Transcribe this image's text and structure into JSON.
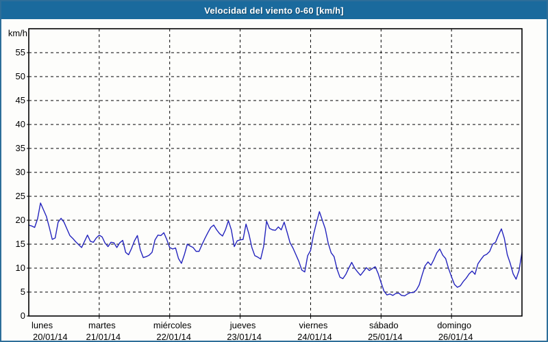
{
  "window": {
    "title": "Velocidad del viento 0-60 [km/h]"
  },
  "colors": {
    "titlebar_bg": "#1a6a9d",
    "titlebar_text": "#ffffff",
    "frame_border": "#2d6e99",
    "plot_border": "#000000",
    "grid": "#000000",
    "series_line": "#2323bd",
    "background": "#fdfdfb"
  },
  "chart_data": {
    "type": "line",
    "title": "Velocidad del viento 0-60 [km/h]",
    "xlabel": "",
    "ylabel": "km/h",
    "ylim": [
      0,
      60
    ],
    "ytick_step": 5,
    "ytick_labels": [
      "0",
      "5",
      "10",
      "15",
      "20",
      "25",
      "30",
      "35",
      "40",
      "45",
      "50",
      "55"
    ],
    "grid": true,
    "legend_position": "none",
    "x_days": [
      {
        "name": "lunes",
        "date": "20/01/14"
      },
      {
        "name": "martes",
        "date": "21/01/14"
      },
      {
        "name": "miércoles",
        "date": "22/01/14"
      },
      {
        "name": "jueves",
        "date": "23/01/14"
      },
      {
        "name": "viernes",
        "date": "24/01/14"
      },
      {
        "name": "sábado",
        "date": "25/01/14"
      },
      {
        "name": "domingo",
        "date": "26/01/14"
      }
    ],
    "x_unit": "hours",
    "series": [
      {
        "name": "Velocidad del viento",
        "color": "#2323bd",
        "values": [
          19.0,
          18.8,
          18.5,
          20.3,
          23.6,
          22.2,
          20.8,
          18.5,
          16.0,
          16.3,
          19.6,
          20.4,
          19.6,
          18.2,
          16.8,
          16.2,
          15.5,
          14.9,
          14.3,
          15.6,
          16.9,
          15.6,
          15.4,
          16.3,
          16.9,
          16.5,
          15.2,
          14.5,
          15.4,
          15.3,
          14.3,
          15.3,
          15.8,
          13.3,
          12.8,
          14.1,
          15.7,
          16.8,
          13.8,
          12.2,
          12.4,
          12.7,
          13.3,
          15.9,
          16.9,
          16.8,
          17.4,
          16.0,
          14.3,
          14.0,
          14.2,
          12.0,
          11.0,
          12.8,
          15.0,
          14.6,
          14.3,
          13.5,
          13.5,
          14.9,
          16.2,
          17.4,
          18.5,
          19.0,
          18.0,
          17.2,
          16.7,
          18.0,
          19.9,
          18.0,
          14.5,
          15.7,
          15.9,
          16.0,
          19.2,
          17.1,
          14.3,
          12.6,
          12.3,
          11.9,
          14.5,
          19.8,
          18.3,
          18.0,
          17.9,
          18.6,
          18.0,
          19.6,
          17.5,
          15.3,
          14.2,
          12.8,
          11.4,
          9.6,
          9.2,
          12.6,
          13.7,
          17.0,
          19.5,
          21.8,
          20.0,
          18.2,
          15.2,
          13.2,
          12.4,
          9.8,
          8.1,
          7.8,
          8.7,
          10.0,
          11.2,
          10.0,
          9.2,
          8.5,
          9.3,
          10.1,
          9.5,
          9.9,
          10.3,
          8.9,
          7.0,
          5.2,
          4.4,
          4.6,
          4.3,
          4.7,
          4.8,
          4.3,
          4.2,
          4.6,
          4.9,
          4.9,
          5.4,
          6.5,
          8.6,
          10.5,
          11.3,
          10.6,
          11.8,
          13.2,
          14.0,
          12.7,
          12.0,
          9.9,
          8.2,
          6.6,
          6.0,
          6.3,
          7.2,
          7.9,
          8.8,
          9.4,
          8.7,
          10.9,
          11.8,
          12.6,
          12.9,
          13.5,
          15.0,
          15.4,
          16.9,
          18.2,
          16.2,
          12.8,
          11.0,
          8.8,
          7.7,
          9.5,
          13.3
        ]
      }
    ]
  }
}
